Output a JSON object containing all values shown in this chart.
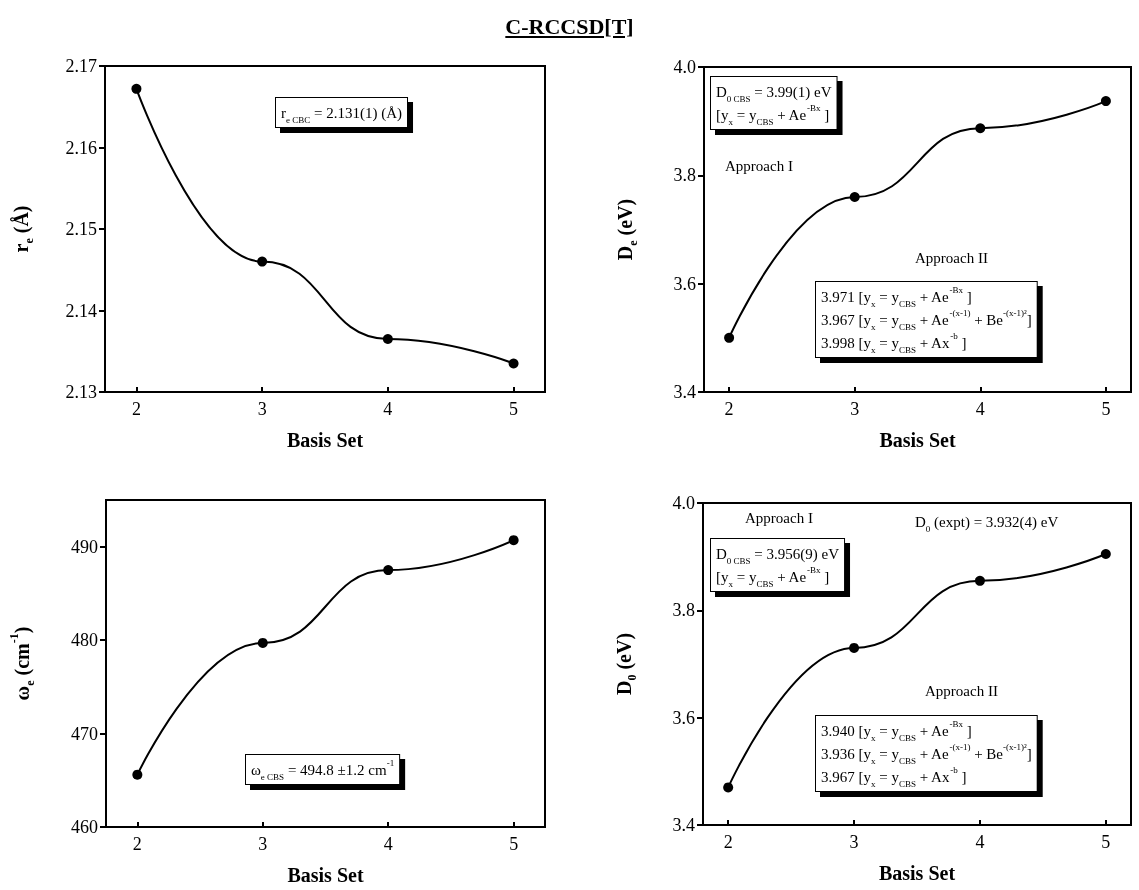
{
  "chart_data": [
    {
      "type": "line",
      "title": "C-RCCSD[T]",
      "xlabel": "Basis Set",
      "ylabel": "r$_{e}$ (Å)",
      "x": [
        2,
        3,
        4,
        5
      ],
      "xlim": [
        1.75,
        5.25
      ],
      "xticks": [
        2,
        3,
        4,
        5
      ],
      "ylim": [
        2.13,
        2.17
      ],
      "yticks": [
        2.13,
        2.14,
        2.15,
        2.16,
        2.17
      ],
      "marker": "circle",
      "line_style": "solid",
      "series": [
        {
          "color": "#000000",
          "values": [
            2.1672,
            2.146,
            2.1365,
            2.1335
          ]
        }
      ],
      "annotations": [
        "r$_{e CBC}$ = 2.131(1) (Å)"
      ]
    },
    {
      "type": "line",
      "xlabel": "Basis Set",
      "ylabel": "D$_{e}$ (eV)",
      "x": [
        2,
        3,
        4,
        5
      ],
      "xlim": [
        1.8,
        5.2
      ],
      "xticks": [
        2,
        3,
        4,
        5
      ],
      "ylim": [
        3.4,
        4.0
      ],
      "yticks": [
        3.4,
        3.6,
        3.8,
        {
          "value": 4.0,
          "label": "4.0"
        }
      ],
      "marker": "circle",
      "line_style": "solid",
      "series": [
        {
          "color": "#000000",
          "values": [
            3.5,
            3.76,
            3.887,
            3.937
          ]
        }
      ],
      "annotations": [
        "D$_{0 CBS}$ = 3.99(1) eV",
        "[y$_{x}$ = y$_{CBS}$ + Ae$^{-Bx}$ ]",
        "Approach I",
        "Approach II",
        "3.971 [y$_{x}$ = y$_{CBS}$ + Ae$^{-Bx}$ ]",
        "3.967 [y$_{x}$ = y$_{CBS}$ + Ae$^{-(x-1)}$ + Be$^{-(x-1)²}$]",
        "3.998 [y$_{x}$ = y$_{CBS}$ + Ax$^{-b}$ ]"
      ]
    },
    {
      "type": "line",
      "xlabel": "Basis Set",
      "ylabel": "ω$_{e}$ (cm$^{-1}$)",
      "x": [
        2,
        3,
        4,
        5
      ],
      "xlim": [
        1.75,
        5.25
      ],
      "xticks": [
        2,
        3,
        4,
        5
      ],
      "ylim": [
        460,
        495
      ],
      "yticks": [
        460,
        470,
        480,
        490
      ],
      "marker": "circle",
      "line_style": "solid",
      "series": [
        {
          "color": "#000000",
          "values": [
            465.6,
            479.7,
            487.5,
            490.7
          ]
        }
      ],
      "annotations": [
        "ω$_{e CBS}$ = 494.8 ±1.2 cm$^{-1}$"
      ]
    },
    {
      "type": "line",
      "xlabel": "Basis Set",
      "ylabel": "D$_{0}$ (eV)",
      "x": [
        2,
        3,
        4,
        5
      ],
      "xlim": [
        1.8,
        5.2
      ],
      "xticks": [
        2,
        3,
        4,
        5
      ],
      "ylim": [
        3.4,
        4.0
      ],
      "yticks": [
        3.4,
        3.6,
        3.8,
        {
          "value": 4.0,
          "label": "4.0"
        }
      ],
      "marker": "circle",
      "line_style": "solid",
      "series": [
        {
          "color": "#000000",
          "values": [
            3.47,
            3.73,
            3.855,
            3.905
          ]
        }
      ],
      "annotations": [
        "Approach I",
        "D$_{0}$ (expt) = 3.932(4) eV",
        "D$_{0 CBS}$ = 3.956(9) eV",
        "[y$_{x}$ = y$_{CBS}$ + Ae$^{-Bx}$ ]",
        "Approach II",
        "3.940 [y$_{x}$ = y$_{CBS}$ + Ae$^{-Bx}$ ]",
        "3.936 [y$_{x}$ = y$_{CBS}$ + Ae$^{-(x-1)}$ + Be$^{-(x-1)²}$]",
        "3.967 [y$_{x}$ = y$_{CBS}$ + Ax$^{-b}$ ]"
      ]
    }
  ]
}
